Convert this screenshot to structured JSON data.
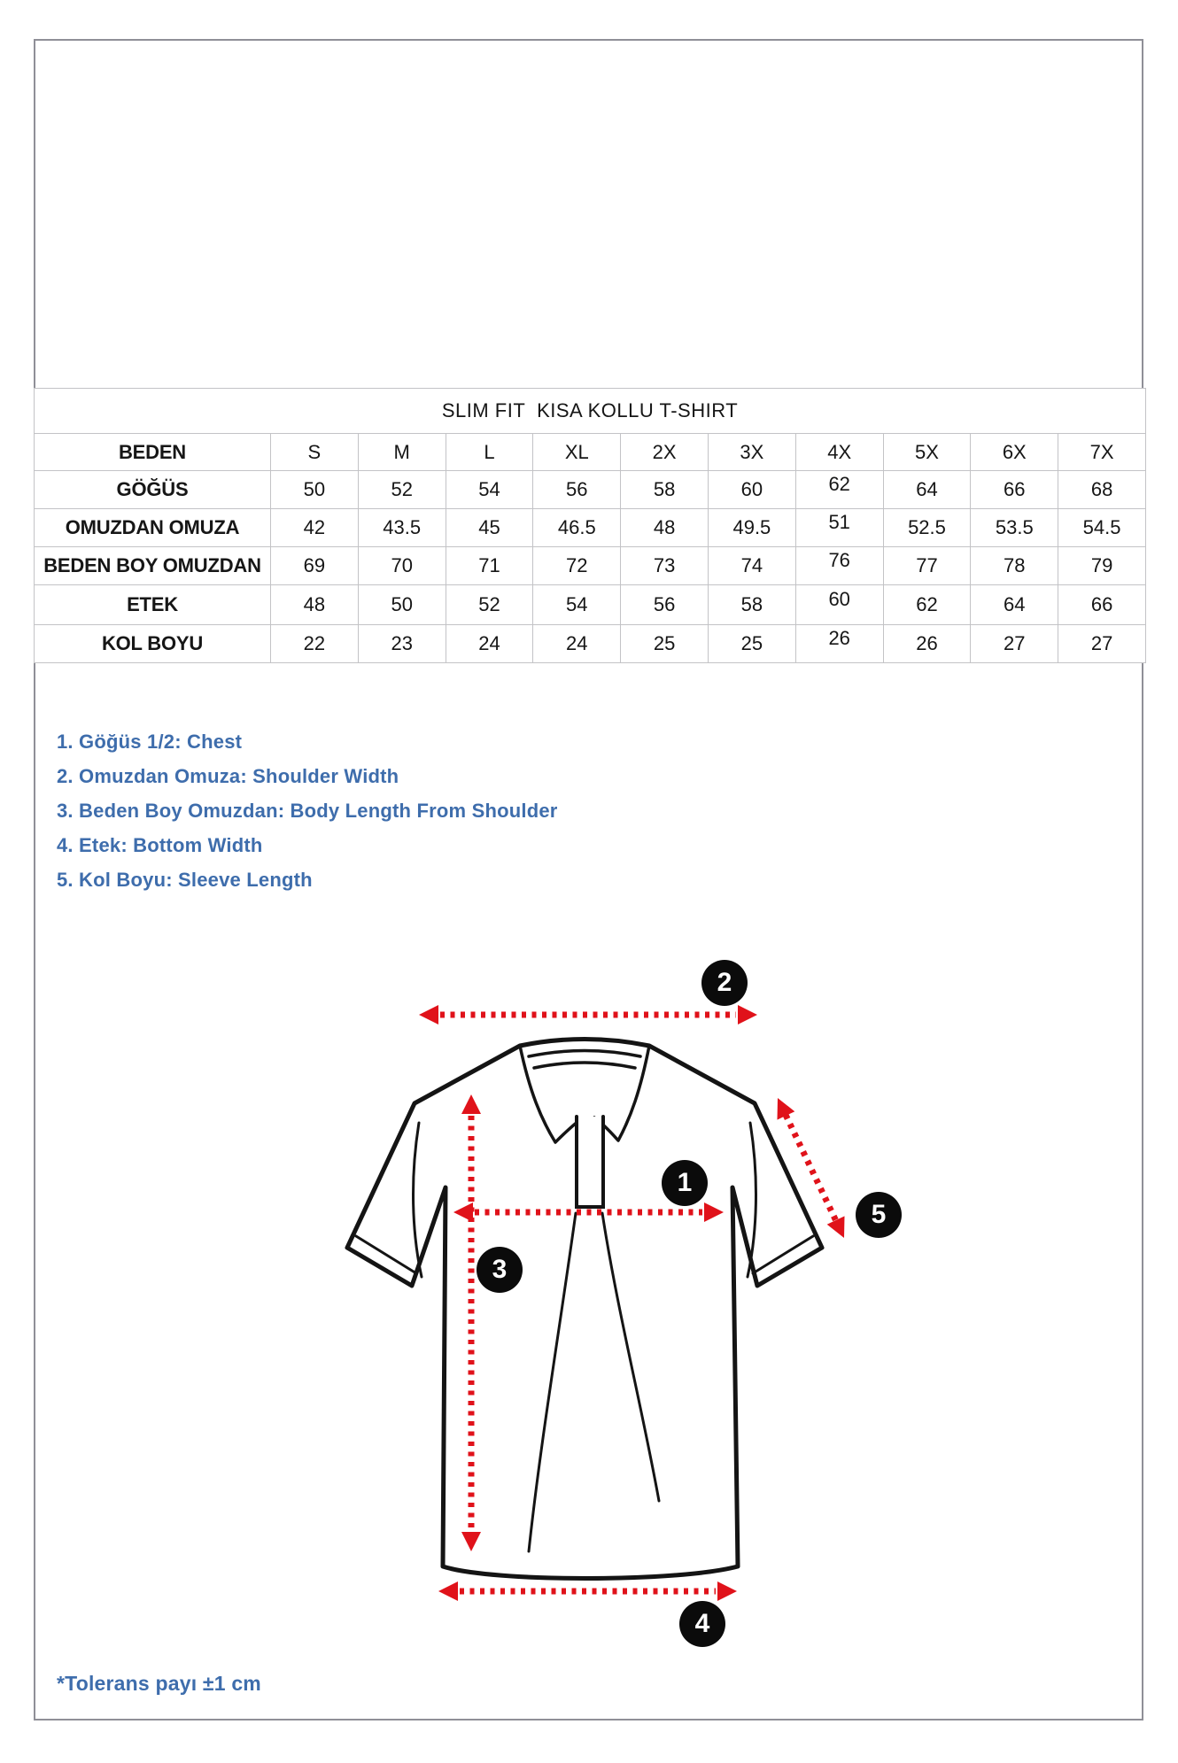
{
  "table": {
    "title": "SLIM FIT  KISA KOLLU T-SHIRT",
    "header": {
      "label": "BEDEN",
      "sizes": [
        "S",
        "M",
        "L",
        "XL",
        "2X",
        "3X",
        "4X",
        "5X",
        "6X",
        "7X"
      ]
    },
    "rows": [
      {
        "label": "GÖĞÜS",
        "values": [
          "50",
          "52",
          "54",
          "56",
          "58",
          "60",
          "62",
          "64",
          "66",
          "68"
        ]
      },
      {
        "label": "OMUZDAN OMUZA",
        "values": [
          "42",
          "43.5",
          "45",
          "46.5",
          "48",
          "49.5",
          "51",
          "52.5",
          "53.5",
          "54.5"
        ]
      },
      {
        "label": "BEDEN BOY OMUZDAN",
        "values": [
          "69",
          "70",
          "71",
          "72",
          "73",
          "74",
          "76",
          "77",
          "78",
          "79"
        ]
      },
      {
        "label": "ETEK",
        "values": [
          "48",
          "50",
          "52",
          "54",
          "56",
          "58",
          "60",
          "62",
          "64",
          "66"
        ]
      },
      {
        "label": "KOL BOYU",
        "values": [
          "22",
          "23",
          "24",
          "24",
          "25",
          "25",
          "26",
          "26",
          "27",
          "27"
        ]
      }
    ]
  },
  "legend": {
    "items": [
      "1. Göğüs 1/2: Chest",
      "2. Omuzdan Omuza: Shoulder Width",
      "3. Beden Boy Omuzdan: Body Length From Shoulder",
      "4. Etek: Bottom Width",
      "5. Kol Boyu: Sleeve Length"
    ]
  },
  "diagram": {
    "markers": [
      "1",
      "2",
      "3",
      "4",
      "5"
    ]
  },
  "footnote": "*Tolerans payı ±1 cm",
  "colors": {
    "accent_blue": "#4678B8",
    "legend_blue": "#3E6DAC",
    "arrow_red": "#E0121A",
    "marker_black": "#0B0B0B",
    "frame_gray": "#8F8F97",
    "table_border": "#C3C3C6"
  }
}
